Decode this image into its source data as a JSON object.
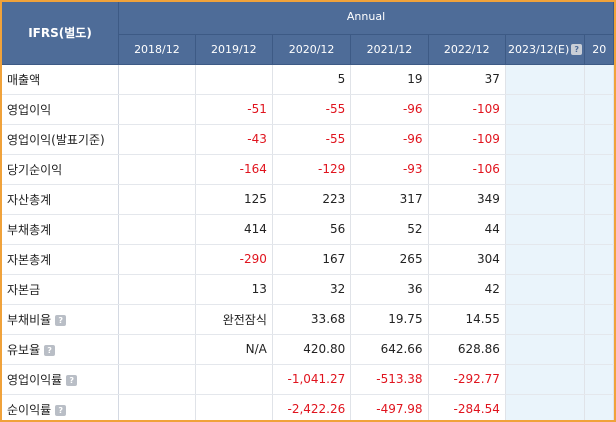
{
  "header": {
    "title": "IFRS(별도)",
    "group": "Annual",
    "years": [
      "2018/12",
      "2019/12",
      "2020/12",
      "2021/12",
      "2022/12",
      "2023/12(E)",
      "20"
    ],
    "help_glyph": "?"
  },
  "rows": [
    {
      "label": "매출액",
      "help": false,
      "values": [
        "",
        "",
        "5",
        "19",
        "37",
        "",
        ""
      ]
    },
    {
      "label": "영업이익",
      "help": false,
      "values": [
        "",
        "-51",
        "-55",
        "-96",
        "-109",
        "",
        ""
      ]
    },
    {
      "label": "영업이익(발표기준)",
      "help": false,
      "values": [
        "",
        "-43",
        "-55",
        "-96",
        "-109",
        "",
        ""
      ]
    },
    {
      "label": "당기순이익",
      "help": false,
      "values": [
        "",
        "-164",
        "-129",
        "-93",
        "-106",
        "",
        ""
      ]
    },
    {
      "label": "자산총계",
      "help": false,
      "values": [
        "",
        "125",
        "223",
        "317",
        "349",
        "",
        ""
      ]
    },
    {
      "label": "부채총계",
      "help": false,
      "values": [
        "",
        "414",
        "56",
        "52",
        "44",
        "",
        ""
      ]
    },
    {
      "label": "자본총계",
      "help": false,
      "values": [
        "",
        "-290",
        "167",
        "265",
        "304",
        "",
        ""
      ]
    },
    {
      "label": "자본금",
      "help": false,
      "values": [
        "",
        "13",
        "32",
        "36",
        "42",
        "",
        ""
      ]
    },
    {
      "label": "부채비율",
      "help": true,
      "values": [
        "",
        "완전잠식",
        "33.68",
        "19.75",
        "14.55",
        "",
        ""
      ]
    },
    {
      "label": "유보율",
      "help": true,
      "values": [
        "",
        "N/A",
        "420.80",
        "642.66",
        "628.86",
        "",
        ""
      ]
    },
    {
      "label": "영업이익률",
      "help": true,
      "values": [
        "",
        "",
        "-1,041.27",
        "-513.38",
        "-292.77",
        "",
        ""
      ]
    },
    {
      "label": "순이익률",
      "help": true,
      "values": [
        "",
        "",
        "-2,422.26",
        "-497.98",
        "-284.54",
        "",
        ""
      ]
    }
  ],
  "colors": {
    "header_bg": "#4e6c98",
    "negative": "#e0141e",
    "estimate_bg": "#eaf4fb",
    "frame_border": "#f0a23a"
  }
}
